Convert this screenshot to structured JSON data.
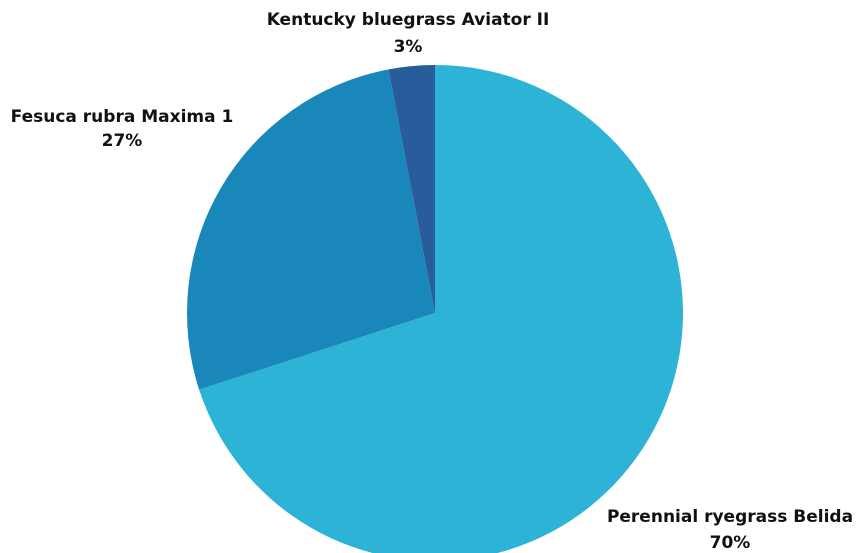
{
  "chart_data": {
    "type": "pie",
    "title": "",
    "slices": [
      {
        "name": "Perennial ryegrass Belida",
        "value": 70,
        "label": "70%",
        "color": "#2db3d6"
      },
      {
        "name": "Fesuca rubra Maxima 1",
        "value": 27,
        "label": "27%",
        "color": "#1a87bb"
      },
      {
        "name": "Kentucky bluegrass Aviator II",
        "value": 3,
        "label": "3%",
        "color": "#285c9a"
      }
    ],
    "start_angle_deg": 0,
    "direction": "clockwise",
    "legend": "none"
  }
}
